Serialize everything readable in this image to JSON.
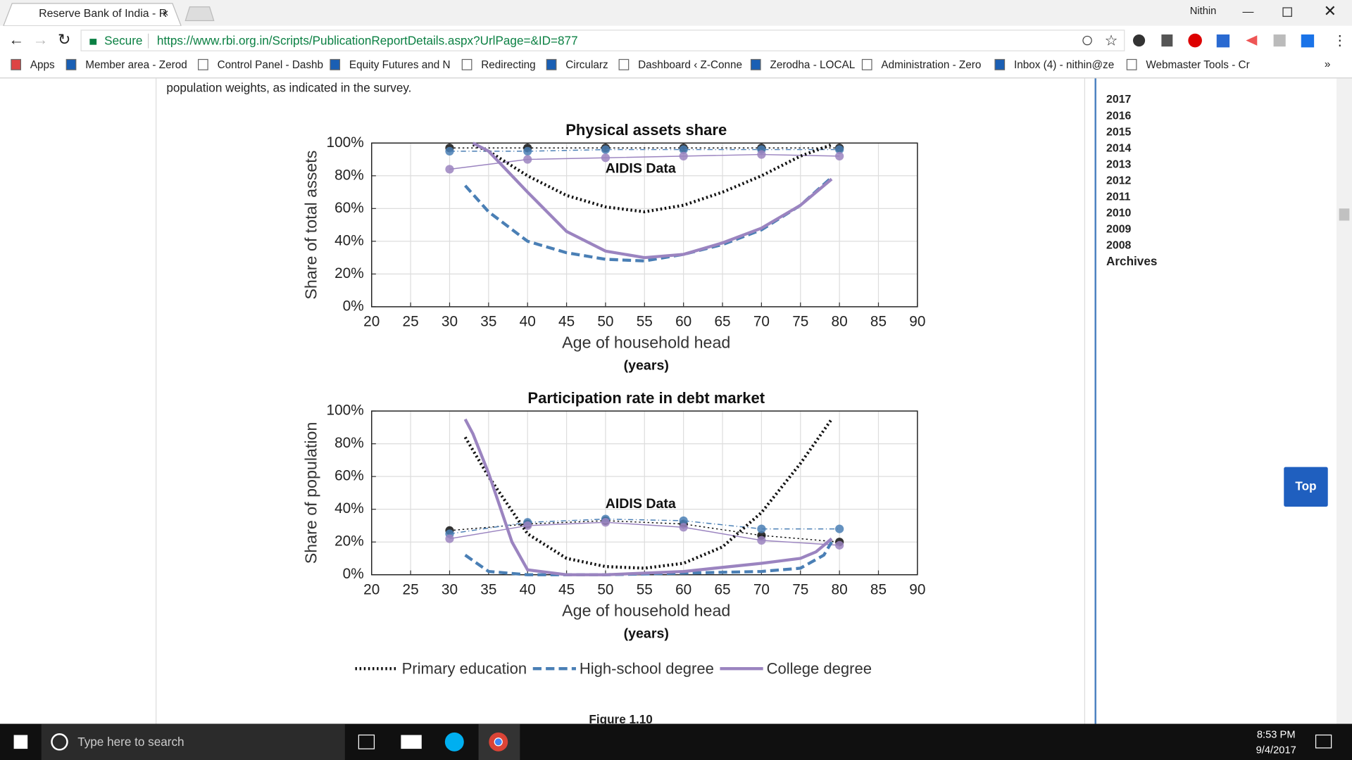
{
  "browser": {
    "tab_title": "Reserve Bank of India - R",
    "user": "Nithin",
    "secure": "Secure",
    "url": "https://www.rbi.org.in/Scripts/PublicationReportDetails.aspx?UrlPage=&ID=877",
    "bookmarks": [
      "Apps",
      "Member area - Zerod",
      "Control Panel - Dashb",
      "Equity Futures and N",
      "Redirecting",
      "Circularz",
      "Dashboard ‹ Z-Conne",
      "Zerodha - LOCAL",
      "Administration - Zero",
      "Inbox (4) - nithin@ze",
      "Webmaster Tools - Cr"
    ],
    "more": "»"
  },
  "content": {
    "text": "population weights, as indicated in the survey.",
    "figure_caption": "Figure 1.10",
    "top_button": "Top"
  },
  "sidebar": {
    "years": [
      "2017",
      "2016",
      "2015",
      "2014",
      "2013",
      "2012",
      "2011",
      "2010",
      "2009",
      "2008"
    ],
    "archives": "Archives"
  },
  "taskbar": {
    "search": "Type here to search",
    "time": "8:53 PM",
    "date": "9/4/2017"
  },
  "chart_data": [
    {
      "type": "line",
      "title": "Physical assets share",
      "xlabel": "Age of household head",
      "xlabel_unit": "(years)",
      "ylabel": "Share of total assets",
      "annotation": "AIDIS Data",
      "grid": true,
      "xlim": [
        20,
        90
      ],
      "xticks": [
        20,
        25,
        30,
        35,
        40,
        45,
        50,
        55,
        60,
        65,
        70,
        75,
        80,
        85,
        90
      ],
      "ylim": [
        0,
        100
      ],
      "yticks": [
        {
          "value": 0,
          "label": "0%"
        },
        {
          "value": 20,
          "label": "20%"
        },
        {
          "value": 40,
          "label": "40%"
        },
        {
          "value": 60,
          "label": "60%"
        },
        {
          "value": 80,
          "label": "80%"
        },
        {
          "value": 100,
          "label": "100%"
        }
      ],
      "series": [
        {
          "name": "Primary education",
          "color": "#111111",
          "style": "dotted",
          "x": [
            33,
            35,
            40,
            45,
            50,
            55,
            60,
            65,
            70,
            75,
            79
          ],
          "values": [
            99,
            95,
            80,
            68,
            61,
            58,
            62,
            70,
            80,
            92,
            99
          ]
        },
        {
          "name": "High-school degree",
          "color": "#4a7fb5",
          "style": "dashed",
          "x": [
            32,
            35,
            40,
            45,
            50,
            55,
            60,
            65,
            70,
            75,
            79
          ],
          "values": [
            74,
            58,
            40,
            33,
            29,
            28,
            32,
            38,
            47,
            62,
            79
          ]
        },
        {
          "name": "College degree",
          "color": "#9b84c0",
          "style": "solid",
          "x": [
            33,
            35,
            40,
            45,
            50,
            55,
            60,
            65,
            70,
            75,
            79
          ],
          "values": [
            100,
            95,
            70,
            46,
            34,
            30,
            32,
            39,
            48,
            62,
            78
          ]
        }
      ],
      "data_points": [
        {
          "color": "#111111",
          "style": "dotted",
          "x": [
            30,
            40,
            50,
            60,
            70,
            80
          ],
          "values": [
            97,
            97,
            97,
            97,
            97,
            97
          ]
        },
        {
          "color": "#4a7fb5",
          "style": "dashdot",
          "x": [
            30,
            40,
            50,
            60,
            70,
            80
          ],
          "values": [
            95,
            95,
            96,
            96,
            96,
            96
          ]
        },
        {
          "color": "#9b84c0",
          "style": "solid",
          "x": [
            30,
            40,
            50,
            60,
            70,
            80
          ],
          "values": [
            84,
            90,
            91,
            92,
            93,
            92
          ]
        }
      ]
    },
    {
      "type": "line",
      "title": "Participation rate in debt market",
      "xlabel": "Age of household head",
      "xlabel_unit": "(years)",
      "ylabel": "Share of population",
      "annotation": "AIDIS Data",
      "grid": true,
      "xlim": [
        20,
        90
      ],
      "xticks": [
        20,
        25,
        30,
        35,
        40,
        45,
        50,
        55,
        60,
        65,
        70,
        75,
        80,
        85,
        90
      ],
      "ylim": [
        0,
        100
      ],
      "yticks": [
        {
          "value": 0,
          "label": "0%"
        },
        {
          "value": 20,
          "label": "20%"
        },
        {
          "value": 40,
          "label": "40%"
        },
        {
          "value": 60,
          "label": "60%"
        },
        {
          "value": 80,
          "label": "80%"
        },
        {
          "value": 100,
          "label": "100%"
        }
      ],
      "series": [
        {
          "color": "#111111",
          "style": "dotted",
          "x": [
            32,
            35,
            40,
            45,
            50,
            55,
            60,
            65,
            70,
            75,
            79
          ],
          "values": [
            84,
            60,
            25,
            10,
            5,
            4,
            7,
            17,
            38,
            68,
            95
          ]
        },
        {
          "color": "#4a7fb5",
          "style": "dashed",
          "x": [
            32,
            35,
            40,
            50,
            60,
            70,
            75,
            78,
            79
          ],
          "values": [
            12,
            2,
            0,
            0,
            1,
            2,
            4,
            12,
            20
          ]
        },
        {
          "color": "#9b84c0",
          "style": "solid",
          "x": [
            32,
            33,
            35,
            38,
            40,
            45,
            50,
            60,
            70,
            75,
            77,
            79
          ],
          "values": [
            95,
            86,
            62,
            20,
            3,
            0,
            0,
            2,
            7,
            10,
            14,
            22
          ]
        }
      ],
      "data_points": [
        {
          "color": "#111111",
          "style": "dotted",
          "x": [
            30,
            40,
            50,
            60,
            70,
            80
          ],
          "values": [
            27,
            31,
            33,
            31,
            24,
            20
          ]
        },
        {
          "color": "#4a7fb5",
          "style": "dashdot",
          "x": [
            30,
            40,
            50,
            60,
            70,
            80
          ],
          "values": [
            25,
            32,
            34,
            33,
            28,
            28
          ]
        },
        {
          "color": "#9b84c0",
          "style": "solid",
          "x": [
            30,
            40,
            50,
            60,
            70,
            80
          ],
          "values": [
            22,
            30,
            32,
            29,
            21,
            18
          ]
        }
      ]
    }
  ]
}
